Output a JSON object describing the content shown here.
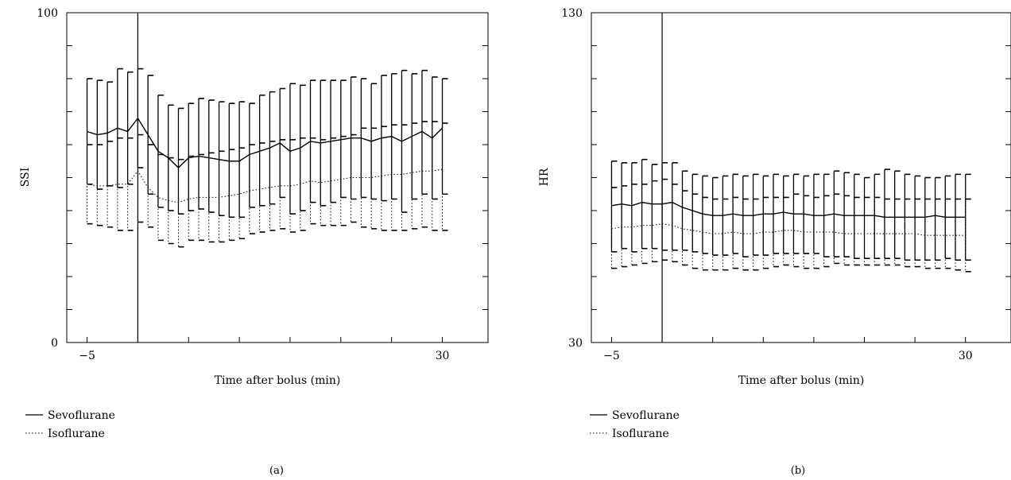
{
  "chart_data": [
    {
      "type": "line",
      "panel_label": "(a)",
      "xlabel": "Time after bolus (min)",
      "ylabel": "SSI",
      "xlim": [
        -7,
        34.5
      ],
      "ylim": [
        0,
        100
      ],
      "x_tick_labels": [
        {
          "value": -5,
          "text": "−5"
        },
        {
          "value": 30,
          "text": "30"
        }
      ],
      "y_tick_labels": [
        {
          "value": 0,
          "text": "0"
        },
        {
          "value": 100,
          "text": "100"
        }
      ],
      "y_minor_ticks": [
        10,
        20,
        30,
        40,
        50,
        60,
        70,
        80,
        90
      ],
      "x_minor_ticks": [
        0,
        5,
        10,
        15,
        20,
        25
      ],
      "bolus_line_x": 0,
      "legend_position": "bottom-left",
      "x": [
        -5,
        -4,
        -3,
        -2,
        -1,
        0,
        1,
        2,
        3,
        4,
        5,
        6,
        7,
        8,
        9,
        10,
        11,
        12,
        13,
        14,
        15,
        16,
        17,
        18,
        19,
        20,
        21,
        22,
        23,
        24,
        25,
        26,
        27,
        28,
        29,
        30
      ],
      "series": [
        {
          "name": "Sevoflurane",
          "style": "solid",
          "mean": [
            64,
            63,
            63.5,
            65,
            64,
            68,
            63,
            58,
            56,
            53,
            56,
            56.5,
            56,
            55.5,
            55,
            55,
            57,
            58,
            59,
            60.5,
            58,
            59,
            61,
            60.5,
            61,
            61.5,
            62,
            62,
            61,
            62,
            62.5,
            61,
            62.5,
            64,
            62,
            65
          ],
          "upper": [
            80,
            79.5,
            79,
            83,
            82,
            83,
            81,
            75,
            72,
            71,
            72.5,
            74,
            73.5,
            73,
            72.5,
            73,
            72.5,
            75,
            76,
            77,
            78.5,
            78,
            79.5,
            79.5,
            79.5,
            79.5,
            80.5,
            80,
            78.5,
            81,
            81.5,
            82.5,
            81.5,
            82.5,
            80.5,
            80
          ],
          "lower": [
            48,
            46.5,
            47.5,
            47,
            48,
            53,
            45,
            41,
            40,
            39,
            40,
            40.5,
            39.5,
            38.5,
            38,
            38,
            41,
            41.5,
            42,
            44,
            39,
            40,
            42.5,
            41.5,
            42.5,
            44,
            43.5,
            44,
            43.5,
            43,
            43.5,
            39.5,
            43.5,
            45,
            43.5,
            45
          ]
        },
        {
          "name": "Isoflurane",
          "style": "dotted",
          "mean": [
            48,
            47.5,
            47.5,
            48,
            48,
            52,
            47,
            44,
            43,
            42.5,
            43.5,
            44,
            44,
            44,
            44.5,
            45,
            46,
            46.5,
            47,
            47.5,
            47.5,
            48,
            49,
            48.5,
            49,
            49.5,
            50,
            50,
            50,
            50.5,
            51,
            51,
            51.5,
            52,
            52,
            52.5
          ],
          "upper": [
            60,
            60,
            61,
            62,
            62,
            63,
            60,
            57,
            56,
            55.5,
            56.5,
            57,
            57.5,
            58,
            58.5,
            59,
            60,
            60.5,
            61,
            61.5,
            61.5,
            62,
            62,
            61.5,
            62,
            62.5,
            63,
            65,
            65,
            65.5,
            66,
            66,
            66.5,
            67,
            67,
            66.5
          ],
          "lower": [
            36,
            35.5,
            35,
            34,
            34,
            36.5,
            35,
            31,
            30,
            29,
            31,
            31,
            30.5,
            30.5,
            31,
            31.5,
            33,
            33.5,
            34,
            34.5,
            33.5,
            34,
            36,
            35.5,
            35.5,
            35.5,
            36.5,
            35,
            34.5,
            34,
            34,
            34,
            34.5,
            35,
            34,
            34
          ]
        }
      ]
    },
    {
      "type": "line",
      "panel_label": "(b)",
      "xlabel": "Time after bolus (min)",
      "ylabel": "HR",
      "xlim": [
        -7,
        34.5
      ],
      "ylim": [
        30,
        130
      ],
      "x_tick_labels": [
        {
          "value": -5,
          "text": "−5"
        },
        {
          "value": 30,
          "text": "30"
        }
      ],
      "y_tick_labels": [
        {
          "value": 30,
          "text": "30"
        },
        {
          "value": 130,
          "text": "130"
        }
      ],
      "y_minor_ticks": [
        40,
        50,
        60,
        70,
        80,
        90,
        100,
        110,
        120
      ],
      "x_minor_ticks": [
        0,
        5,
        10,
        15,
        20,
        25
      ],
      "bolus_line_x": 0,
      "legend_position": "bottom-left",
      "x": [
        -5,
        -4,
        -3,
        -2,
        -1,
        0,
        1,
        2,
        3,
        4,
        5,
        6,
        7,
        8,
        9,
        10,
        11,
        12,
        13,
        14,
        15,
        16,
        17,
        18,
        19,
        20,
        21,
        22,
        23,
        24,
        25,
        26,
        27,
        28,
        29,
        30
      ],
      "series": [
        {
          "name": "Sevoflurane",
          "style": "solid",
          "mean": [
            71.5,
            72,
            71.5,
            72.5,
            72,
            72,
            72.5,
            71,
            70,
            69,
            68.5,
            68.5,
            69,
            68.5,
            68.5,
            69,
            69,
            69.5,
            69,
            69,
            68.5,
            68.5,
            69,
            68.5,
            68.5,
            68.5,
            68.5,
            68,
            68,
            68,
            68,
            68,
            68.5,
            68,
            68,
            68
          ],
          "upper": [
            85,
            84.5,
            84.5,
            85.5,
            84,
            84.5,
            84.5,
            82,
            81,
            80.5,
            80,
            80.5,
            81,
            80.5,
            81,
            80.5,
            81,
            80.5,
            81,
            80.5,
            81,
            81,
            82,
            81.5,
            81,
            80,
            81,
            82.5,
            82,
            81,
            80.5,
            80,
            80,
            80.5,
            81,
            81
          ],
          "lower": [
            57.5,
            58.5,
            57.5,
            58.5,
            58.5,
            58,
            58,
            58,
            57.5,
            57,
            56.5,
            56.5,
            57,
            56,
            56.5,
            56.5,
            57,
            57,
            57,
            57,
            57,
            56,
            56,
            56,
            55.5,
            55.5,
            55.5,
            55.5,
            55.5,
            55,
            55,
            55,
            55,
            55.5,
            55,
            55
          ]
        },
        {
          "name": "Isoflurane",
          "style": "dotted",
          "mean": [
            64.5,
            65,
            65,
            65.5,
            65.5,
            66,
            65.5,
            64.5,
            64,
            63.5,
            63,
            63,
            63.5,
            63,
            63,
            63.5,
            63.5,
            64,
            64,
            63.5,
            63.5,
            63.5,
            63.5,
            63,
            63,
            63,
            63,
            63,
            63,
            63,
            63,
            62.5,
            62.5,
            62.5,
            62.5,
            62.5
          ],
          "upper": [
            77,
            77.5,
            78,
            78,
            79,
            79.5,
            78,
            76,
            75,
            74,
            73.5,
            73.5,
            74,
            73.5,
            73.5,
            74,
            74,
            74,
            75,
            74.5,
            74,
            74.5,
            75,
            74.5,
            74,
            74,
            74,
            73.5,
            73.5,
            73.5,
            73.5,
            73.5,
            73.5,
            73.5,
            73.5,
            73.5
          ],
          "lower": [
            52.5,
            53,
            53.5,
            54,
            54.5,
            55,
            54.5,
            53.5,
            52.5,
            52,
            52,
            52,
            52.5,
            52,
            52,
            52.5,
            53,
            53.5,
            53,
            52.5,
            52.5,
            53,
            54,
            53.5,
            53.5,
            53.5,
            53.5,
            53.5,
            53.5,
            53,
            53,
            52.5,
            52.5,
            52.5,
            52,
            51.5
          ]
        }
      ]
    }
  ]
}
